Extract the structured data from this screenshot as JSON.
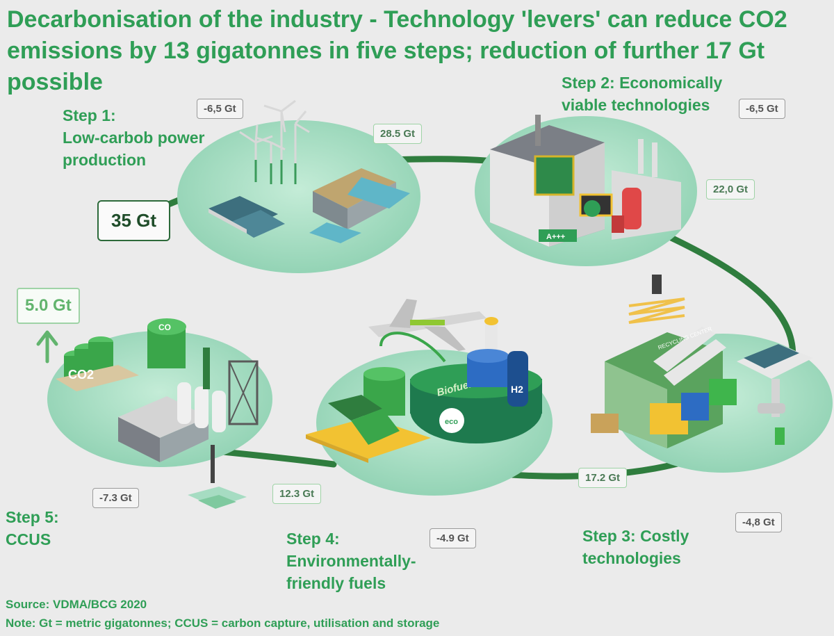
{
  "title": "Decarbonisation of the industry - Technology 'levers' can reduce CO2 emissions by 13 gigatonnes in five steps; reduction of further 17 Gt possible",
  "steps": [
    {
      "lines": [
        "Step 1:",
        "Low-carbob power",
        "production"
      ]
    },
    {
      "lines": [
        "Step 2: Economically",
        "viable technologies"
      ]
    },
    {
      "lines": [
        "Step 3: Costly",
        "technologies"
      ]
    },
    {
      "lines": [
        "Step 4:",
        "Environmentally-",
        "friendly fuels"
      ]
    },
    {
      "lines": [
        "Step 5:",
        "CCUS"
      ]
    }
  ],
  "values": {
    "start": "35 Gt",
    "step1_reduction": "-6,5 Gt",
    "after_step1": "28.5 Gt",
    "step2_reduction": "-6,5 Gt",
    "after_step2": "22,0 Gt",
    "step3_reduction": "-4,8 Gt",
    "after_step3": "17.2 Gt",
    "step4_reduction": "-4.9 Gt",
    "after_step4": "12.3 Gt",
    "step5_reduction": "-7.3 Gt",
    "final": "5.0 Gt"
  },
  "illustration_labels": {
    "co2_tank": "CO2",
    "silo_top": "CO",
    "hydrogen": "H2",
    "biofuel": "Biofuel",
    "eco": "eco",
    "efficiency": "A+++",
    "recycling": "RECYCLING CENTER"
  },
  "source": "Source: VDMA/BCG 2020",
  "note": "Note: Gt = metric gigatonnes; CCUS = carbon capture, utilisation and storage",
  "colors": {
    "accent": "#2f9e56",
    "platform": "#a6dcc2",
    "path": "#2f7d3e"
  }
}
